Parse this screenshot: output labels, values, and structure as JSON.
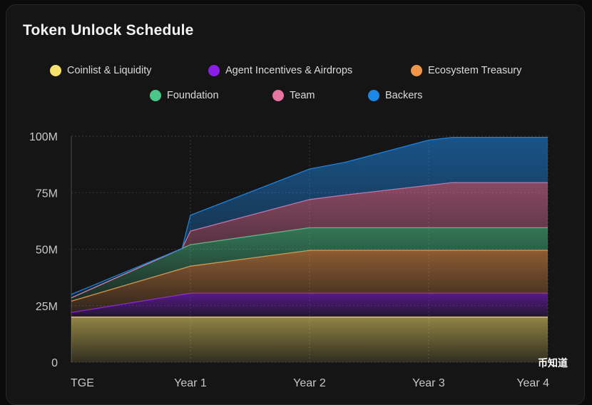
{
  "chart_data": {
    "type": "area",
    "title": "Token Unlock Schedule",
    "xlabel": "",
    "ylabel": "",
    "x_tick_labels": [
      "TGE",
      "Year 1",
      "Year 2",
      "Year 3",
      "Year 4"
    ],
    "y_tick_labels": [
      "0",
      "25M",
      "50M",
      "75M",
      "100M"
    ],
    "y_ticks": [
      0,
      25,
      50,
      75,
      100
    ],
    "ylim": [
      0,
      100
    ],
    "xlim": [
      0,
      4
    ],
    "stacked": true,
    "legend_position": "top",
    "grid": true,
    "series": [
      {
        "name": "Coinlist & Liquidity",
        "color": "#f7e06b",
        "points": [
          [
            0,
            20
          ],
          [
            4,
            20
          ]
        ]
      },
      {
        "name": "Agent Incentives & Airdrops",
        "color": "#8a1ee6",
        "points": [
          [
            0,
            2
          ],
          [
            1,
            10.5
          ],
          [
            4,
            10.5
          ]
        ]
      },
      {
        "name": "Ecosystem Treasury",
        "color": "#f0964a",
        "points": [
          [
            0,
            5
          ],
          [
            1,
            12
          ],
          [
            2,
            19
          ],
          [
            4,
            19
          ]
        ]
      },
      {
        "name": "Foundation",
        "color": "#4cc58a",
        "points": [
          [
            0,
            1.5
          ],
          [
            1,
            9.5
          ],
          [
            2,
            10
          ],
          [
            4,
            10
          ]
        ]
      },
      {
        "name": "Team",
        "color": "#e874a0",
        "points": [
          [
            0,
            0
          ],
          [
            0.93,
            0
          ],
          [
            1,
            6
          ],
          [
            2,
            12.5
          ],
          [
            2.3,
            14.5
          ],
          [
            3.2,
            20
          ],
          [
            4,
            20
          ]
        ]
      },
      {
        "name": "Backers",
        "color": "#1b87e6",
        "points": [
          [
            0,
            1.5
          ],
          [
            0.93,
            0
          ],
          [
            1,
            7
          ],
          [
            2,
            13.5
          ],
          [
            2.3,
            14.5
          ],
          [
            3,
            20
          ],
          [
            3.2,
            20
          ],
          [
            4,
            20
          ]
        ]
      }
    ]
  },
  "watermark": "币知道"
}
